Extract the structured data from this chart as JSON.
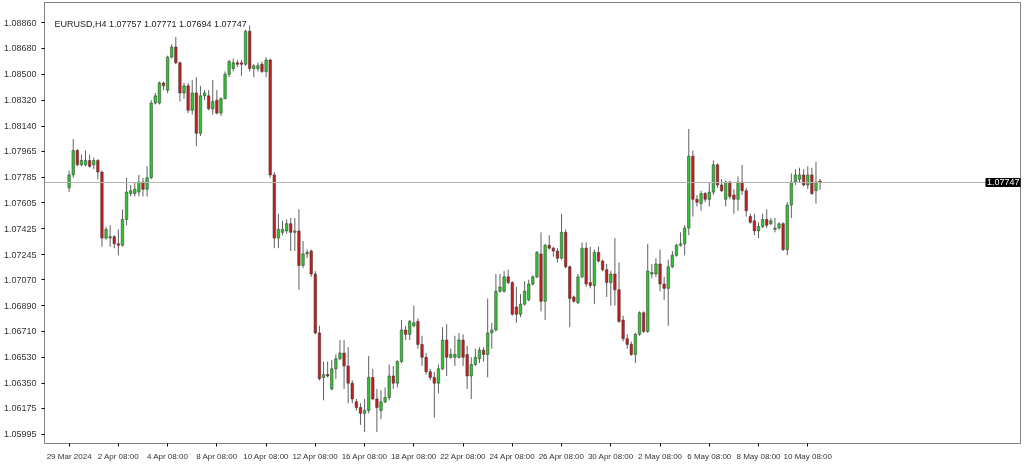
{
  "chart_data": {
    "type": "candlestick",
    "title": "EURUSD,H4 1.07757 1.07771 1.07694 1.07747",
    "categories": [
      "29 Mar 2024",
      null,
      null,
      null,
      null,
      null,
      null,
      null,
      null,
      null,
      null,
      null,
      "2 Apr 08:00",
      null,
      null,
      null,
      null,
      null,
      null,
      null,
      null,
      null,
      null,
      null,
      "4 Apr 08:00",
      null,
      null,
      null,
      null,
      null,
      null,
      null,
      null,
      null,
      null,
      null,
      "8 Apr 08:00",
      null,
      null,
      null,
      null,
      null,
      null,
      null,
      null,
      null,
      null,
      null,
      "10 Apr 08:00",
      null,
      null,
      null,
      null,
      null,
      null,
      null,
      null,
      null,
      null,
      null,
      "12 Apr 08:00",
      null,
      null,
      null,
      null,
      null,
      null,
      null,
      null,
      null,
      null,
      null,
      "16 Apr 08:00",
      null,
      null,
      null,
      null,
      null,
      null,
      null,
      null,
      null,
      null,
      null,
      "18 Apr 08:00",
      null,
      null,
      null,
      null,
      null,
      null,
      null,
      null,
      null,
      null,
      null,
      "22 Apr 08:00",
      null,
      null,
      null,
      null,
      null,
      null,
      null,
      null,
      null,
      null,
      null,
      "24 Apr 08:00",
      null,
      null,
      null,
      null,
      null,
      null,
      null,
      null,
      null,
      null,
      null,
      "26 Apr 08:00",
      null,
      null,
      null,
      null,
      null,
      null,
      null,
      null,
      null,
      null,
      null,
      "30 Apr 08:00",
      null,
      null,
      null,
      null,
      null,
      null,
      null,
      null,
      null,
      null,
      null,
      "2 May 08:00",
      null,
      null,
      null,
      null,
      null,
      null,
      null,
      null,
      null,
      null,
      null,
      "6 May 08:00",
      null,
      null,
      null,
      null,
      null,
      null,
      null,
      null,
      null,
      null,
      null,
      "8 May 08:00",
      null,
      null,
      null,
      null,
      null,
      null,
      null,
      null,
      null,
      null,
      null,
      "10 May 08:00",
      null,
      null,
      null
    ],
    "ohlc": [
      [
        1.0771,
        1.0783,
        1.0768,
        1.078
      ],
      [
        1.078,
        1.0805,
        1.0778,
        1.0797
      ],
      [
        1.0797,
        1.0798,
        1.0786,
        1.0787
      ],
      [
        1.0787,
        1.0794,
        1.0786,
        1.079
      ],
      [
        1.0787,
        1.0797,
        1.0786,
        1.079
      ],
      [
        1.079,
        1.0794,
        1.0785,
        1.0786
      ],
      [
        1.0787,
        1.0792,
        1.0784,
        1.079
      ],
      [
        1.079,
        1.0791,
        1.0777,
        1.0782
      ],
      [
        1.0782,
        1.0783,
        1.073,
        1.0736
      ],
      [
        1.0736,
        1.0744,
        1.0735,
        1.0742
      ],
      [
        1.0736,
        1.0745,
        1.073,
        1.0737
      ],
      [
        1.0737,
        1.0738,
        1.0729,
        1.0732
      ],
      [
        1.0732,
        1.0742,
        1.0724,
        1.0731
      ],
      [
        1.0731,
        1.0756,
        1.073,
        1.0749
      ],
      [
        1.0749,
        1.0778,
        1.0745,
        1.0768
      ],
      [
        1.0767,
        1.0773,
        1.0765,
        1.0769
      ],
      [
        1.0767,
        1.0775,
        1.0765,
        1.077
      ],
      [
        1.0768,
        1.078,
        1.0765,
        1.0775
      ],
      [
        1.0775,
        1.0778,
        1.0765,
        1.077
      ],
      [
        1.077,
        1.0786,
        1.0765,
        1.0778
      ],
      [
        1.0778,
        1.0832,
        1.0777,
        1.083
      ],
      [
        1.083,
        1.0837,
        1.0829,
        1.0835
      ],
      [
        1.083,
        1.0845,
        1.0829,
        1.0844
      ],
      [
        1.0844,
        1.0845,
        1.0839,
        1.0842
      ],
      [
        1.0839,
        1.0863,
        1.0837,
        1.0862
      ],
      [
        1.0862,
        1.0871,
        1.0861,
        1.0869
      ],
      [
        1.0869,
        1.0876,
        1.0857,
        1.0858
      ],
      [
        1.0858,
        1.0859,
        1.0831,
        1.0837
      ],
      [
        1.0837,
        1.0844,
        1.0833,
        1.0842
      ],
      [
        1.0842,
        1.0844,
        1.0823,
        1.0825
      ],
      [
        1.0825,
        1.0846,
        1.0822,
        1.0837
      ],
      [
        1.0837,
        1.0848,
        1.08,
        1.0809
      ],
      [
        1.0809,
        1.0842,
        1.0807,
        1.0835
      ],
      [
        1.0835,
        1.0839,
        1.0832,
        1.0837
      ],
      [
        1.0835,
        1.0839,
        1.0825,
        1.0826
      ],
      [
        1.0826,
        1.0846,
        1.0822,
        1.0831
      ],
      [
        1.0832,
        1.0839,
        1.0822,
        1.0823
      ],
      [
        1.0823,
        1.0834,
        1.0821,
        1.0833
      ],
      [
        1.0833,
        1.0852,
        1.0833,
        1.085
      ],
      [
        1.085,
        1.086,
        1.0848,
        1.0859
      ],
      [
        1.0854,
        1.0861,
        1.0852,
        1.0858
      ],
      [
        1.0858,
        1.086,
        1.0855,
        1.0857
      ],
      [
        1.0858,
        1.086,
        1.0849,
        1.0857
      ],
      [
        1.0857,
        1.0881,
        1.0856,
        1.088
      ],
      [
        1.088,
        1.0884,
        1.0852,
        1.0854
      ],
      [
        1.0854,
        1.0857,
        1.0848,
        1.0856
      ],
      [
        1.0854,
        1.0858,
        1.0852,
        1.0856
      ],
      [
        1.0857,
        1.0859,
        1.0851,
        1.0852
      ],
      [
        1.0852,
        1.0862,
        1.0848,
        1.086
      ],
      [
        1.086,
        1.0861,
        1.0778,
        1.078
      ],
      [
        1.078,
        1.0782,
        1.0729,
        1.0736
      ],
      [
        1.0736,
        1.0753,
        1.0729,
        1.0742
      ],
      [
        1.074,
        1.0748,
        1.0738,
        1.0742
      ],
      [
        1.0741,
        1.0749,
        1.0739,
        1.0746
      ],
      [
        1.0746,
        1.075,
        1.0727,
        1.074
      ],
      [
        1.074,
        1.075,
        1.0727,
        1.0741
      ],
      [
        1.0741,
        1.0756,
        1.07,
        1.0717
      ],
      [
        1.0717,
        1.0734,
        1.0715,
        1.0725
      ],
      [
        1.0725,
        1.0728,
        1.0722,
        1.0726
      ],
      [
        1.0727,
        1.0728,
        1.0709,
        1.0711
      ],
      [
        1.0711,
        1.0713,
        1.0669,
        1.067
      ],
      [
        1.067,
        1.0675,
        1.0637,
        1.0638
      ],
      [
        1.0639,
        1.065,
        1.0623,
        1.0641
      ],
      [
        1.0641,
        1.065,
        1.0639,
        1.064
      ],
      [
        1.0631,
        1.0651,
        1.063,
        1.0645
      ],
      [
        1.0645,
        1.0655,
        1.0638,
        1.0652
      ],
      [
        1.0652,
        1.0665,
        1.0651,
        1.0656
      ],
      [
        1.0656,
        1.0665,
        1.0631,
        1.0647
      ],
      [
        1.0647,
        1.066,
        1.0621,
        1.0635
      ],
      [
        1.0635,
        1.0637,
        1.0621,
        1.0624
      ],
      [
        1.0622,
        1.0624,
        1.0616,
        1.0618
      ],
      [
        1.0618,
        1.0621,
        1.0606,
        1.0614
      ],
      [
        1.0614,
        1.0624,
        1.0601,
        1.0616
      ],
      [
        1.0616,
        1.0654,
        1.0614,
        1.0639
      ],
      [
        1.0639,
        1.0645,
        1.0623,
        1.0624
      ],
      [
        1.0624,
        1.0631,
        1.0601,
        1.0618
      ],
      [
        1.0616,
        1.063,
        1.061,
        1.0622
      ],
      [
        1.0622,
        1.0632,
        1.0621,
        1.0625
      ],
      [
        1.0625,
        1.0648,
        1.0623,
        1.064
      ],
      [
        1.064,
        1.0647,
        1.0631,
        1.0635
      ],
      [
        1.0635,
        1.0651,
        1.0632,
        1.065
      ],
      [
        1.065,
        1.0679,
        1.0649,
        1.0672
      ],
      [
        1.0672,
        1.0675,
        1.0665,
        1.0669
      ],
      [
        1.0669,
        1.0679,
        1.0665,
        1.0678
      ],
      [
        1.0675,
        1.0689,
        1.0674,
        1.0677
      ],
      [
        1.0678,
        1.068,
        1.0659,
        1.0662
      ],
      [
        1.0662,
        1.0668,
        1.0647,
        1.0653
      ],
      [
        1.0653,
        1.0656,
        1.0641,
        1.0643
      ],
      [
        1.0643,
        1.0645,
        1.0637,
        1.0639
      ],
      [
        1.0639,
        1.0643,
        1.0611,
        1.0635
      ],
      [
        1.0635,
        1.0648,
        1.0628,
        1.0645
      ],
      [
        1.0645,
        1.0674,
        1.0644,
        1.0665
      ],
      [
        1.0665,
        1.0676,
        1.064,
        1.0653
      ],
      [
        1.0653,
        1.0659,
        1.0652,
        1.0655
      ],
      [
        1.0653,
        1.0668,
        1.0647,
        1.0655
      ],
      [
        1.0653,
        1.067,
        1.0652,
        1.0665
      ],
      [
        1.0665,
        1.0669,
        1.0647,
        1.0653
      ],
      [
        1.0655,
        1.0661,
        1.0631,
        1.064
      ],
      [
        1.064,
        1.0653,
        1.0624,
        1.0648
      ],
      [
        1.0648,
        1.0659,
        1.0647,
        1.0653
      ],
      [
        1.0652,
        1.066,
        1.0649,
        1.0658
      ],
      [
        1.0658,
        1.066,
        1.065,
        1.0655
      ],
      [
        1.0655,
        1.0694,
        1.0639,
        1.067
      ],
      [
        1.067,
        1.0677,
        1.0659,
        1.0672
      ],
      [
        1.0672,
        1.0711,
        1.0671,
        1.0699
      ],
      [
        1.0699,
        1.0711,
        1.0698,
        1.0702
      ],
      [
        1.0699,
        1.0713,
        1.0698,
        1.0709
      ],
      [
        1.0709,
        1.0714,
        1.0704,
        1.0705
      ],
      [
        1.0705,
        1.0706,
        1.0682,
        1.0683
      ],
      [
        1.0688,
        1.0702,
        1.0677,
        1.0683
      ],
      [
        1.0683,
        1.0697,
        1.0681,
        1.069
      ],
      [
        1.069,
        1.0706,
        1.0689,
        1.0699
      ],
      [
        1.0693,
        1.0707,
        1.0692,
        1.0704
      ],
      [
        1.0704,
        1.071,
        1.0703,
        1.0709
      ],
      [
        1.0709,
        1.0727,
        1.0708,
        1.0726
      ],
      [
        1.0725,
        1.074,
        1.0685,
        1.0692
      ],
      [
        1.0692,
        1.0732,
        1.0679,
        1.0731
      ],
      [
        1.0731,
        1.0738,
        1.0728,
        1.0729
      ],
      [
        1.0729,
        1.073,
        1.0723,
        1.0727
      ],
      [
        1.0727,
        1.0729,
        1.0719,
        1.0722
      ],
      [
        1.0722,
        1.0753,
        1.0721,
        1.074
      ],
      [
        1.074,
        1.0742,
        1.0715,
        1.0716
      ],
      [
        1.0716,
        1.0717,
        1.0674,
        1.0694
      ],
      [
        1.0695,
        1.0696,
        1.0691,
        1.0692
      ],
      [
        1.0691,
        1.0711,
        1.069,
        1.0709
      ],
      [
        1.0709,
        1.0733,
        1.0708,
        1.0729
      ],
      [
        1.0729,
        1.0733,
        1.0702,
        1.0704
      ],
      [
        1.0705,
        1.073,
        1.0701,
        1.0703
      ],
      [
        1.0703,
        1.0728,
        1.069,
        1.0726
      ],
      [
        1.0726,
        1.073,
        1.0719,
        1.072
      ],
      [
        1.072,
        1.0721,
        1.0713,
        1.0714
      ],
      [
        1.0714,
        1.0718,
        1.0695,
        1.0705
      ],
      [
        1.0705,
        1.0713,
        1.0689,
        1.0711
      ],
      [
        1.0711,
        1.0736,
        1.0689,
        1.07
      ],
      [
        1.07,
        1.0719,
        1.0677,
        1.0678
      ],
      [
        1.0679,
        1.0682,
        1.0664,
        1.0666
      ],
      [
        1.0666,
        1.0669,
        1.0659,
        1.0662
      ],
      [
        1.0662,
        1.0664,
        1.0654,
        1.0655
      ],
      [
        1.0655,
        1.067,
        1.0649,
        1.0669
      ],
      [
        1.0669,
        1.0685,
        1.0668,
        1.0684
      ],
      [
        1.0684,
        1.0685,
        1.067,
        1.0671
      ],
      [
        1.0671,
        1.0732,
        1.067,
        1.0713
      ],
      [
        1.0711,
        1.0718,
        1.0708,
        1.0712
      ],
      [
        1.0711,
        1.0722,
        1.0709,
        1.0718
      ],
      [
        1.0718,
        1.0728,
        1.0699,
        1.0704
      ],
      [
        1.0704,
        1.0709,
        1.0693,
        1.0701
      ],
      [
        1.0701,
        1.0721,
        1.0675,
        1.0716
      ],
      [
        1.0716,
        1.0727,
        1.0715,
        1.0724
      ],
      [
        1.0724,
        1.0732,
        1.0723,
        1.0731
      ],
      [
        1.0731,
        1.074,
        1.073,
        1.0732
      ],
      [
        1.0732,
        1.0745,
        1.0724,
        1.0743
      ],
      [
        1.0743,
        1.0812,
        1.0738,
        1.0793
      ],
      [
        1.0793,
        1.0797,
        1.0751,
        1.0763
      ],
      [
        1.0763,
        1.0766,
        1.0758,
        1.0761
      ],
      [
        1.076,
        1.0769,
        1.0755,
        1.0767
      ],
      [
        1.0767,
        1.0768,
        1.0761,
        1.0763
      ],
      [
        1.0763,
        1.0775,
        1.0758,
        1.0768
      ],
      [
        1.0768,
        1.079,
        1.0766,
        1.0787
      ],
      [
        1.0787,
        1.0788,
        1.0771,
        1.0773
      ],
      [
        1.0773,
        1.0777,
        1.0768,
        1.0769
      ],
      [
        1.0763,
        1.0776,
        1.0758,
        1.0775
      ],
      [
        1.0775,
        1.0776,
        1.0763,
        1.0765
      ],
      [
        1.0766,
        1.077,
        1.0753,
        1.0763
      ],
      [
        1.0763,
        1.0779,
        1.0755,
        1.0775
      ],
      [
        1.0775,
        1.0787,
        1.0766,
        1.0769
      ],
      [
        1.0769,
        1.0771,
        1.0751,
        1.0755
      ],
      [
        1.0751,
        1.0753,
        1.0746,
        1.0747
      ],
      [
        1.0748,
        1.0753,
        1.0738,
        1.0741
      ],
      [
        1.0741,
        1.0747,
        1.0736,
        1.0744
      ],
      [
        1.0744,
        1.0753,
        1.0743,
        1.0749
      ],
      [
        1.0749,
        1.0756,
        1.0743,
        1.0745
      ],
      [
        1.0746,
        1.075,
        1.0745,
        1.0748
      ],
      [
        1.0742,
        1.075,
        1.074,
        1.0743
      ],
      [
        1.0743,
        1.0747,
        1.0742,
        1.0746
      ],
      [
        1.0746,
        1.0747,
        1.0727,
        1.0728
      ],
      [
        1.0728,
        1.0761,
        1.0724,
        1.0759
      ],
      [
        1.0759,
        1.0781,
        1.075,
        1.0775
      ],
      [
        1.0775,
        1.0784,
        1.0773,
        1.078
      ],
      [
        1.0777,
        1.0785,
        1.0775,
        1.078
      ],
      [
        1.078,
        1.0784,
        1.0772,
        1.0773
      ],
      [
        1.0773,
        1.0786,
        1.077,
        1.078
      ],
      [
        1.078,
        1.0785,
        1.0766,
        1.0767
      ],
      [
        1.0769,
        1.0789,
        1.076,
        1.0775
      ],
      [
        1.07757,
        1.07771,
        1.07694,
        1.07747
      ]
    ],
    "colors": [
      "#2fc52f",
      "#2fc52f",
      "#c41f1f",
      "#2fc52f",
      "#2fc52f",
      "#c41f1f",
      "#2fc52f",
      "#c41f1f",
      "#c41f1f",
      "#2fc52f",
      "#2fc52f",
      "#c41f1f",
      "#c41f1f",
      "#2fc52f",
      "#2fc52f",
      "#2fc52f",
      "#2fc52f",
      "#2fc52f",
      "#c41f1f",
      "#2fc52f",
      "#2fc52f",
      "#2fc52f",
      "#2fc52f",
      "#c41f1f",
      "#2fc52f",
      "#2fc52f",
      "#c41f1f",
      "#c41f1f",
      "#2fc52f",
      "#c41f1f",
      "#2fc52f",
      "#c41f1f",
      "#2fc52f",
      "#2fc52f",
      "#c41f1f",
      "#2fc52f",
      "#c41f1f",
      "#2fc52f",
      "#2fc52f",
      "#2fc52f",
      "#2fc52f",
      "#c41f1f",
      "#c41f1f",
      "#2fc52f",
      "#c41f1f",
      "#2fc52f",
      "#2fc52f",
      "#c41f1f",
      "#2fc52f",
      "#c41f1f",
      "#c41f1f",
      "#2fc52f",
      "#2fc52f",
      "#2fc52f",
      "#c41f1f",
      "#2fc52f",
      "#c41f1f",
      "#2fc52f",
      "#2fc52f",
      "#c41f1f",
      "#c41f1f",
      "#c41f1f",
      "#2fc52f",
      "#c41f1f",
      "#2fc52f",
      "#2fc52f",
      "#2fc52f",
      "#c41f1f",
      "#c41f1f",
      "#c41f1f",
      "#c41f1f",
      "#c41f1f",
      "#2fc52f",
      "#2fc52f",
      "#c41f1f",
      "#c41f1f",
      "#2fc52f",
      "#2fc52f",
      "#2fc52f",
      "#c41f1f",
      "#2fc52f",
      "#2fc52f",
      "#c41f1f",
      "#2fc52f",
      "#2fc52f",
      "#c41f1f",
      "#c41f1f",
      "#c41f1f",
      "#c41f1f",
      "#c41f1f",
      "#2fc52f",
      "#2fc52f",
      "#c41f1f",
      "#2fc52f",
      "#2fc52f",
      "#2fc52f",
      "#c41f1f",
      "#c41f1f",
      "#2fc52f",
      "#2fc52f",
      "#2fc52f",
      "#c41f1f",
      "#2fc52f",
      "#2fc52f",
      "#2fc52f",
      "#2fc52f",
      "#2fc52f",
      "#c41f1f",
      "#c41f1f",
      "#c41f1f",
      "#2fc52f",
      "#2fc52f",
      "#2fc52f",
      "#2fc52f",
      "#2fc52f",
      "#c41f1f",
      "#2fc52f",
      "#c41f1f",
      "#c41f1f",
      "#c41f1f",
      "#2fc52f",
      "#c41f1f",
      "#c41f1f",
      "#c41f1f",
      "#2fc52f",
      "#2fc52f",
      "#c41f1f",
      "#c41f1f",
      "#2fc52f",
      "#c41f1f",
      "#c41f1f",
      "#c41f1f",
      "#2fc52f",
      "#c41f1f",
      "#c41f1f",
      "#c41f1f",
      "#c41f1f",
      "#c41f1f",
      "#2fc52f",
      "#2fc52f",
      "#c41f1f",
      "#2fc52f",
      "#2fc52f",
      "#2fc52f",
      "#c41f1f",
      "#c41f1f",
      "#2fc52f",
      "#2fc52f",
      "#2fc52f",
      "#2fc52f",
      "#2fc52f",
      "#2fc52f",
      "#c41f1f",
      "#c41f1f",
      "#2fc52f",
      "#c41f1f",
      "#2fc52f",
      "#2fc52f",
      "#c41f1f",
      "#c41f1f",
      "#2fc52f",
      "#c41f1f",
      "#c41f1f",
      "#2fc52f",
      "#c41f1f",
      "#c41f1f",
      "#c41f1f",
      "#c41f1f",
      "#2fc52f",
      "#2fc52f",
      "#c41f1f",
      "#2fc52f",
      "#2fc52f",
      "#2fc52f",
      "#c41f1f",
      "#2fc52f",
      "#2fc52f",
      "#2fc52f",
      "#2fc52f",
      "#c41f1f",
      "#2fc52f",
      "#c41f1f",
      "#2fc52f",
      "#c41f1f"
    ],
    "ylim": [
      1.0593,
      1.09
    ],
    "yticks": [
      {
        "value": 1.05995,
        "label": "1.05995"
      },
      {
        "value": 1.06175,
        "label": "1.06175"
      },
      {
        "value": 1.0635,
        "label": "1.06350"
      },
      {
        "value": 1.0653,
        "label": "1.06530"
      },
      {
        "value": 1.0671,
        "label": "1.06710"
      },
      {
        "value": 1.0689,
        "label": "1.06890"
      },
      {
        "value": 1.0707,
        "label": "1.07070"
      },
      {
        "value": 1.07245,
        "label": "1.07245"
      },
      {
        "value": 1.07425,
        "label": "1.07425"
      },
      {
        "value": 1.07605,
        "label": "1.07605"
      },
      {
        "value": 1.07785,
        "label": "1.07785"
      },
      {
        "value": 1.07965,
        "label": "1.07965"
      },
      {
        "value": 1.0814,
        "label": "1.08140"
      },
      {
        "value": 1.0832,
        "label": "1.08320"
      },
      {
        "value": 1.085,
        "label": "1.08500"
      },
      {
        "value": 1.0868,
        "label": "1.08680"
      },
      {
        "value": 1.0886,
        "label": "1.08860"
      }
    ],
    "ref_lines": [
      {
        "axis": "y",
        "value": 1.07747,
        "label": "1.07747",
        "color": "#b4b4b4"
      }
    ]
  }
}
